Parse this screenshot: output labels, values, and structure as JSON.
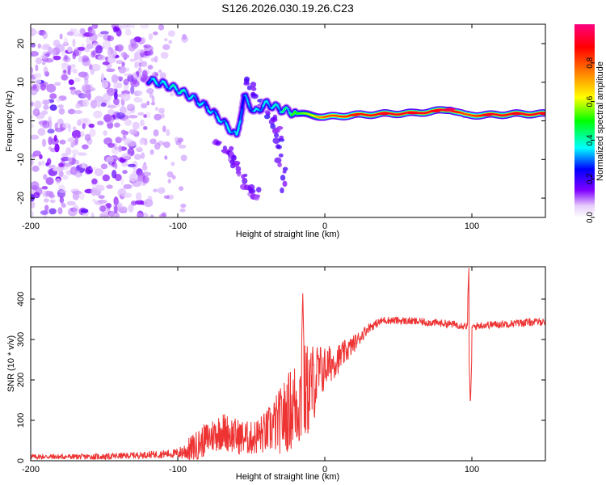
{
  "title": "S126.2026.030.19.26.C23",
  "chart_data": [
    {
      "type": "heatmap",
      "name": "spectrogram",
      "xlabel": "Height of straight line (km)",
      "ylabel": "Frequency (Hz)",
      "xlim": [
        -200,
        150
      ],
      "ylim": [
        -25,
        25
      ],
      "x_ticks": [
        -200,
        -100,
        0,
        100
      ],
      "y_ticks": [
        -20,
        -10,
        0,
        10,
        20
      ],
      "x_tick_labels": [
        "-200",
        "-100",
        "0",
        "100"
      ],
      "y_tick_labels": [
        "-20",
        "-10",
        "0",
        "10",
        "20"
      ],
      "colorbar": {
        "label": "Normalized spectral amplitude",
        "range": [
          0,
          1
        ],
        "ticks": [
          0.0,
          0.2,
          0.4,
          0.6,
          0.8
        ],
        "tick_labels": [
          "0.0",
          "0.2",
          "0.4",
          "0.6",
          "0.8"
        ],
        "colormap": [
          "#ffffff",
          "#8000ff",
          "#0000ff",
          "#00ffff",
          "#00ff00",
          "#ffff00",
          "#ff8000",
          "#ff0000",
          "#ff0080"
        ]
      },
      "noise_region_x": [
        -200,
        -120
      ],
      "ridge": [
        {
          "x": -120,
          "f": 10.5,
          "amp": 0.35
        },
        {
          "x": -110,
          "f": 9.5,
          "amp": 0.35
        },
        {
          "x": -100,
          "f": 8.0,
          "amp": 0.4
        },
        {
          "x": -90,
          "f": 6.0,
          "amp": 0.35
        },
        {
          "x": -80,
          "f": 3.5,
          "amp": 0.35
        },
        {
          "x": -70,
          "f": 0.0,
          "amp": 0.35
        },
        {
          "x": -60,
          "f": -4.0,
          "amp": 0.35
        },
        {
          "x": -55,
          "f": 6.5,
          "amp": 0.3
        },
        {
          "x": -48,
          "f": 2.0,
          "amp": 0.35
        },
        {
          "x": -40,
          "f": 4.5,
          "amp": 0.35
        },
        {
          "x": -30,
          "f": 3.0,
          "amp": 0.4
        },
        {
          "x": -20,
          "f": 2.0,
          "amp": 0.5
        },
        {
          "x": -10,
          "f": 1.5,
          "amp": 0.6
        },
        {
          "x": 0,
          "f": 1.0,
          "amp": 0.8
        },
        {
          "x": 20,
          "f": 1.5,
          "amp": 0.85
        },
        {
          "x": 40,
          "f": 1.8,
          "amp": 0.9
        },
        {
          "x": 60,
          "f": 2.0,
          "amp": 0.9
        },
        {
          "x": 75,
          "f": 2.5,
          "amp": 0.9
        },
        {
          "x": 85,
          "f": 3.0,
          "amp": 0.95
        },
        {
          "x": 95,
          "f": 1.5,
          "amp": 0.8
        },
        {
          "x": 110,
          "f": 1.5,
          "amp": 0.9
        },
        {
          "x": 130,
          "f": 1.8,
          "amp": 0.9
        },
        {
          "x": 150,
          "f": 1.8,
          "amp": 0.9
        }
      ],
      "branches": [
        {
          "points": [
            [
              -55,
              11.0
            ],
            [
              -45,
              5.0
            ],
            [
              -35,
              0.0
            ],
            [
              -30,
              -6.0
            ],
            [
              -27,
              -19.0
            ]
          ],
          "amp": 0.2
        },
        {
          "points": [
            [
              -75,
              -5.0
            ],
            [
              -65,
              -8.0
            ],
            [
              -60,
              -12.0
            ],
            [
              -50,
              -18.0
            ],
            [
              -45,
              -20.0
            ]
          ],
          "amp": 0.15
        }
      ]
    },
    {
      "type": "line",
      "name": "snr",
      "xlabel": "Height of straight line (km)",
      "ylabel": "SNR (10 * v/v)",
      "xlim": [
        -200,
        150
      ],
      "ylim": [
        0,
        480
      ],
      "x_ticks": [
        -200,
        -100,
        0,
        100
      ],
      "y_ticks": [
        0,
        100,
        200,
        300,
        400
      ],
      "x_tick_labels": [
        "-200",
        "-100",
        "0",
        "100"
      ],
      "y_tick_labels": [
        "0",
        "100",
        "200",
        "300",
        "400"
      ],
      "color": "#ee3333",
      "trend": {
        "x": [
          -200,
          -150,
          -120,
          -100,
          -90,
          -80,
          -70,
          -60,
          -50,
          -40,
          -30,
          -20,
          -15,
          -10,
          -5,
          0,
          10,
          20,
          30,
          40,
          60,
          80,
          95,
          100,
          105,
          120,
          150
        ],
        "y": [
          10,
          10,
          15,
          18,
          30,
          55,
          75,
          60,
          55,
          70,
          100,
          140,
          160,
          180,
          210,
          230,
          255,
          290,
          330,
          348,
          345,
          340,
          335,
          330,
          335,
          338,
          345
        ]
      },
      "noise_amplitude": {
        "x": [
          -200,
          -120,
          -100,
          -90,
          -70,
          -50,
          -40,
          -30,
          -20,
          -15,
          -10,
          -5,
          0,
          10,
          20,
          30,
          40,
          150
        ],
        "y": [
          5,
          7,
          10,
          30,
          40,
          35,
          45,
          70,
          95,
          110,
          95,
          70,
          45,
          30,
          18,
          10,
          8,
          8
        ]
      },
      "spikes": [
        {
          "x": -15,
          "y": 420
        },
        {
          "x": 98,
          "y": 480
        },
        {
          "x": 99,
          "y": 135
        }
      ]
    }
  ]
}
